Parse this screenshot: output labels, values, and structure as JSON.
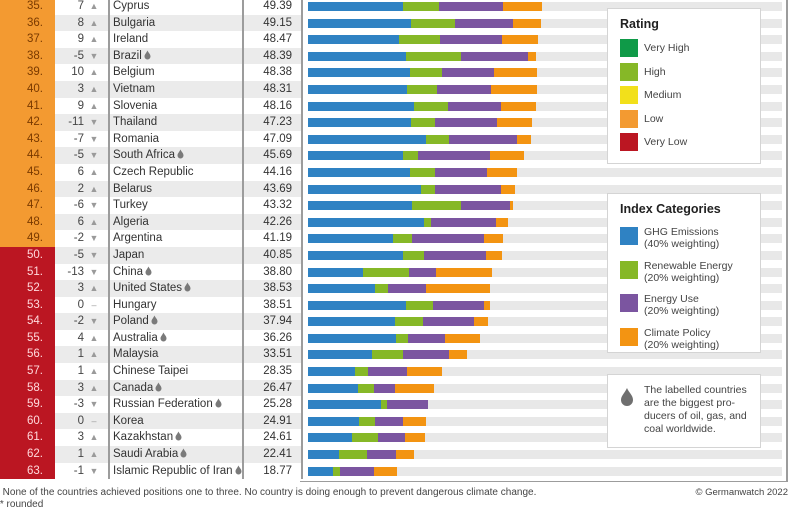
{
  "colors": {
    "ghg": "#2f82c3",
    "renewable": "#86b827",
    "energy_use": "#7b55a0",
    "climate_policy": "#f39412",
    "rating_low": "#f39a31",
    "rating_very_low": "#bb1622",
    "track": "#e8e8e8"
  },
  "legend_rating": {
    "title": "Rating",
    "items": [
      {
        "label": "Very High",
        "color": "#0f9a48"
      },
      {
        "label": "High",
        "color": "#86b827"
      },
      {
        "label": "Medium",
        "color": "#f2e01b"
      },
      {
        "label": "Low",
        "color": "#f39a31"
      },
      {
        "label": "Very Low",
        "color": "#bb1622"
      }
    ]
  },
  "legend_categories": {
    "title": "Index Categories",
    "items": [
      {
        "label": "GHG Emissions",
        "sub": "(40% weighting)",
        "color": "#2f82c3"
      },
      {
        "label": "Renewable Energy",
        "sub": "(20% weighting)",
        "color": "#86b827"
      },
      {
        "label": "Energy Use",
        "sub": "(20% weighting)",
        "color": "#7b55a0"
      },
      {
        "label": "Climate Policy",
        "sub": "(20% weighting)",
        "color": "#f39412"
      }
    ]
  },
  "note": {
    "icon": "flame-icon",
    "text_lines": [
      "The labelled countries",
      "are the biggest pro-",
      "ducers of oil, gas, and",
      "coal worldwide."
    ]
  },
  "footer": {
    "footnote1": "* None of the countries achieved positions one to three. No country is doing enough to prevent dangerous climate change.",
    "footnote2": "** rounded",
    "copyright": "© Germanwatch 2022"
  },
  "chart_data": {
    "type": "bar",
    "stacked": true,
    "orientation": "horizontal",
    "title": "",
    "xlim": [
      0,
      100
    ],
    "series_names": [
      "GHG Emissions",
      "Renewable Energy",
      "Energy Use",
      "Climate Policy"
    ],
    "rows": [
      {
        "rank": "35.",
        "change": "7",
        "dir": "up",
        "country": "Cyprus",
        "fossil": false,
        "score": "49.39",
        "rating": "low",
        "parts": [
          20.0,
          7.6,
          13.5,
          8.2
        ]
      },
      {
        "rank": "36.",
        "change": "8",
        "dir": "up",
        "country": "Bulgaria",
        "fossil": false,
        "score": "49.15",
        "rating": "low",
        "parts": [
          21.7,
          9.3,
          12.2,
          5.9
        ]
      },
      {
        "rank": "37.",
        "change": "9",
        "dir": "up",
        "country": "Ireland",
        "fossil": false,
        "score": "48.47",
        "rating": "low",
        "parts": [
          19.2,
          8.6,
          13.1,
          7.6
        ]
      },
      {
        "rank": "38.",
        "change": "-5",
        "dir": "down",
        "country": "Brazil",
        "fossil": true,
        "score": "48.39",
        "rating": "low",
        "parts": [
          20.6,
          11.6,
          14.3,
          1.7
        ]
      },
      {
        "rank": "39.",
        "change": "10",
        "dir": "up",
        "country": "Belgium",
        "fossil": false,
        "score": "48.38",
        "rating": "low",
        "parts": [
          21.5,
          6.7,
          11.0,
          9.1
        ]
      },
      {
        "rank": "40.",
        "change": "3",
        "dir": "up",
        "country": "Vietnam",
        "fossil": false,
        "score": "48.31",
        "rating": "low",
        "parts": [
          20.9,
          6.3,
          11.4,
          9.7
        ]
      },
      {
        "rank": "41.",
        "change": "9",
        "dir": "up",
        "country": "Slovenia",
        "fossil": false,
        "score": "48.16",
        "rating": "low",
        "parts": [
          22.4,
          7.2,
          11.2,
          7.4
        ]
      },
      {
        "rank": "42.",
        "change": "-11",
        "dir": "down",
        "country": "Thailand",
        "fossil": false,
        "score": "47.23",
        "rating": "low",
        "parts": [
          21.7,
          5.1,
          13.1,
          7.4
        ]
      },
      {
        "rank": "43.",
        "change": "-7",
        "dir": "down",
        "country": "Romania",
        "fossil": false,
        "score": "47.09",
        "rating": "low",
        "parts": [
          24.9,
          4.9,
          14.3,
          3.0
        ]
      },
      {
        "rank": "44.",
        "change": "-5",
        "dir": "down",
        "country": "South Africa",
        "fossil": true,
        "score": "45.69",
        "rating": "low",
        "parts": [
          20.0,
          3.2,
          15.2,
          7.2
        ]
      },
      {
        "rank": "45.",
        "change": "6",
        "dir": "up",
        "country": "Czech Republic",
        "fossil": false,
        "score": "44.16",
        "rating": "low",
        "parts": [
          21.5,
          5.3,
          11.0,
          6.3
        ]
      },
      {
        "rank": "46.",
        "change": "2",
        "dir": "up",
        "country": "Belarus",
        "fossil": false,
        "score": "43.69",
        "rating": "low",
        "parts": [
          23.8,
          3.0,
          13.9,
          3.0
        ]
      },
      {
        "rank": "47.",
        "change": "-6",
        "dir": "down",
        "country": "Turkey",
        "fossil": false,
        "score": "43.32",
        "rating": "low",
        "parts": [
          21.9,
          10.3,
          10.5,
          0.6
        ]
      },
      {
        "rank": "48.",
        "change": "6",
        "dir": "up",
        "country": "Algeria",
        "fossil": false,
        "score": "42.26",
        "rating": "low",
        "parts": [
          24.5,
          1.5,
          13.7,
          2.5
        ]
      },
      {
        "rank": "49.",
        "change": "-2",
        "dir": "down",
        "country": "Argentina",
        "fossil": false,
        "score": "41.19",
        "rating": "low",
        "parts": [
          17.9,
          4.0,
          15.3,
          4.0
        ]
      },
      {
        "rank": "50.",
        "change": "-5",
        "dir": "down",
        "country": "Japan",
        "fossil": false,
        "score": "40.85",
        "rating": "very_low",
        "parts": [
          20.0,
          4.4,
          13.1,
          3.4
        ]
      },
      {
        "rank": "51.",
        "change": "-13",
        "dir": "down",
        "country": "China",
        "fossil": true,
        "score": "38.80",
        "rating": "very_low",
        "parts": [
          11.6,
          9.7,
          5.7,
          11.8
        ]
      },
      {
        "rank": "52.",
        "change": "3",
        "dir": "up",
        "country": "United States",
        "fossil": true,
        "score": "38.53",
        "rating": "very_low",
        "parts": [
          14.1,
          2.7,
          8.0,
          13.7
        ]
      },
      {
        "rank": "53.",
        "change": "0",
        "dir": "none",
        "country": "Hungary",
        "fossil": false,
        "score": "38.51",
        "rating": "very_low",
        "parts": [
          20.7,
          5.7,
          10.8,
          1.3
        ]
      },
      {
        "rank": "54.",
        "change": "-2",
        "dir": "down",
        "country": "Poland",
        "fossil": true,
        "score": "37.94",
        "rating": "very_low",
        "parts": [
          18.4,
          5.9,
          10.7,
          2.9
        ]
      },
      {
        "rank": "55.",
        "change": "4",
        "dir": "up",
        "country": "Australia",
        "fossil": true,
        "score": "36.26",
        "rating": "very_low",
        "parts": [
          18.5,
          2.7,
          7.6,
          7.4
        ]
      },
      {
        "rank": "56.",
        "change": "1",
        "dir": "up",
        "country": "Malaysia",
        "fossil": false,
        "score": "33.51",
        "rating": "very_low",
        "parts": [
          13.5,
          6.5,
          9.7,
          3.8
        ]
      },
      {
        "rank": "57.",
        "change": "1",
        "dir": "up",
        "country": "Chinese Taipei",
        "fossil": false,
        "score": "28.35",
        "rating": "very_low",
        "parts": [
          10.0,
          2.7,
          8.2,
          7.4
        ]
      },
      {
        "rank": "58.",
        "change": "3",
        "dir": "up",
        "country": "Canada",
        "fossil": true,
        "score": "26.47",
        "rating": "very_low",
        "parts": [
          10.5,
          3.4,
          4.4,
          8.2
        ]
      },
      {
        "rank": "59.",
        "change": "-3",
        "dir": "down",
        "country": "Russian Federation",
        "fossil": true,
        "score": "25.28",
        "rating": "very_low",
        "parts": [
          15.4,
          1.3,
          8.6,
          0.0
        ]
      },
      {
        "rank": "60.",
        "change": "0",
        "dir": "none",
        "country": "Korea",
        "fossil": false,
        "score": "24.91",
        "rating": "very_low",
        "parts": [
          10.8,
          3.4,
          5.9,
          4.8
        ]
      },
      {
        "rank": "61.",
        "change": "3",
        "dir": "up",
        "country": "Kazakhstan",
        "fossil": true,
        "score": "24.61",
        "rating": "very_low",
        "parts": [
          9.3,
          5.5,
          5.7,
          4.1
        ]
      },
      {
        "rank": "62.",
        "change": "1",
        "dir": "up",
        "country": "Saudi Arabia",
        "fossil": true,
        "score": "22.41",
        "rating": "very_low",
        "parts": [
          6.5,
          5.9,
          6.1,
          3.9
        ]
      },
      {
        "rank": "63.",
        "change": "-1",
        "dir": "down",
        "country": "Islamic Republic of Iran",
        "fossil": true,
        "score": "18.77",
        "rating": "very_low",
        "parts": [
          5.3,
          1.5,
          7.2,
          4.8
        ]
      }
    ]
  }
}
